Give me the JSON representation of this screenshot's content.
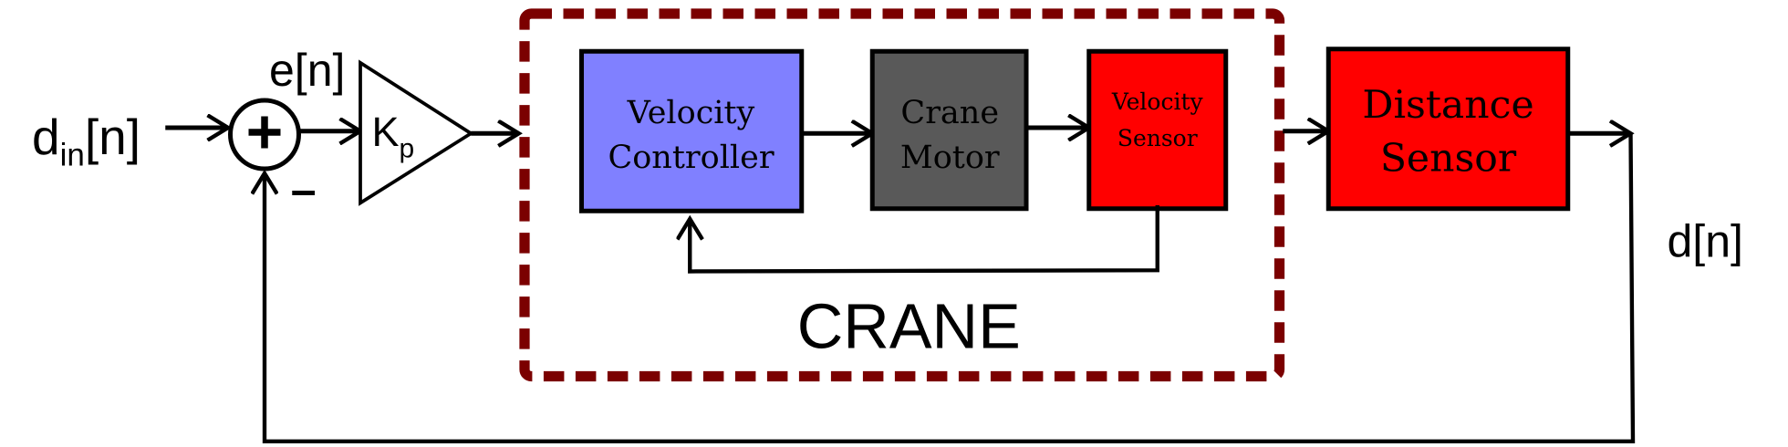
{
  "colors": {
    "crane_border": "#7b0000",
    "velocity_controller": "#8080ff",
    "crane_motor": "#595959",
    "velocity_sensor": "#ff0000",
    "distance_sensor": "#ff0000",
    "line": "#000000"
  },
  "signals": {
    "input_main": "d",
    "input_sub": "in",
    "input_suffix": "[n]",
    "error": "e[n]",
    "output": "d[n]",
    "minus": "–",
    "plus": "+"
  },
  "gain": {
    "main": "K",
    "sub": "p"
  },
  "crane": {
    "label": "CRANE",
    "blocks": [
      {
        "line1": "Velocity",
        "line2": "Controller"
      },
      {
        "line1": "Crane",
        "line2": "Motor"
      },
      {
        "line1": "Velocity",
        "line2": "Sensor"
      }
    ]
  },
  "distance_sensor": {
    "line1": "Distance",
    "line2": "Sensor"
  }
}
